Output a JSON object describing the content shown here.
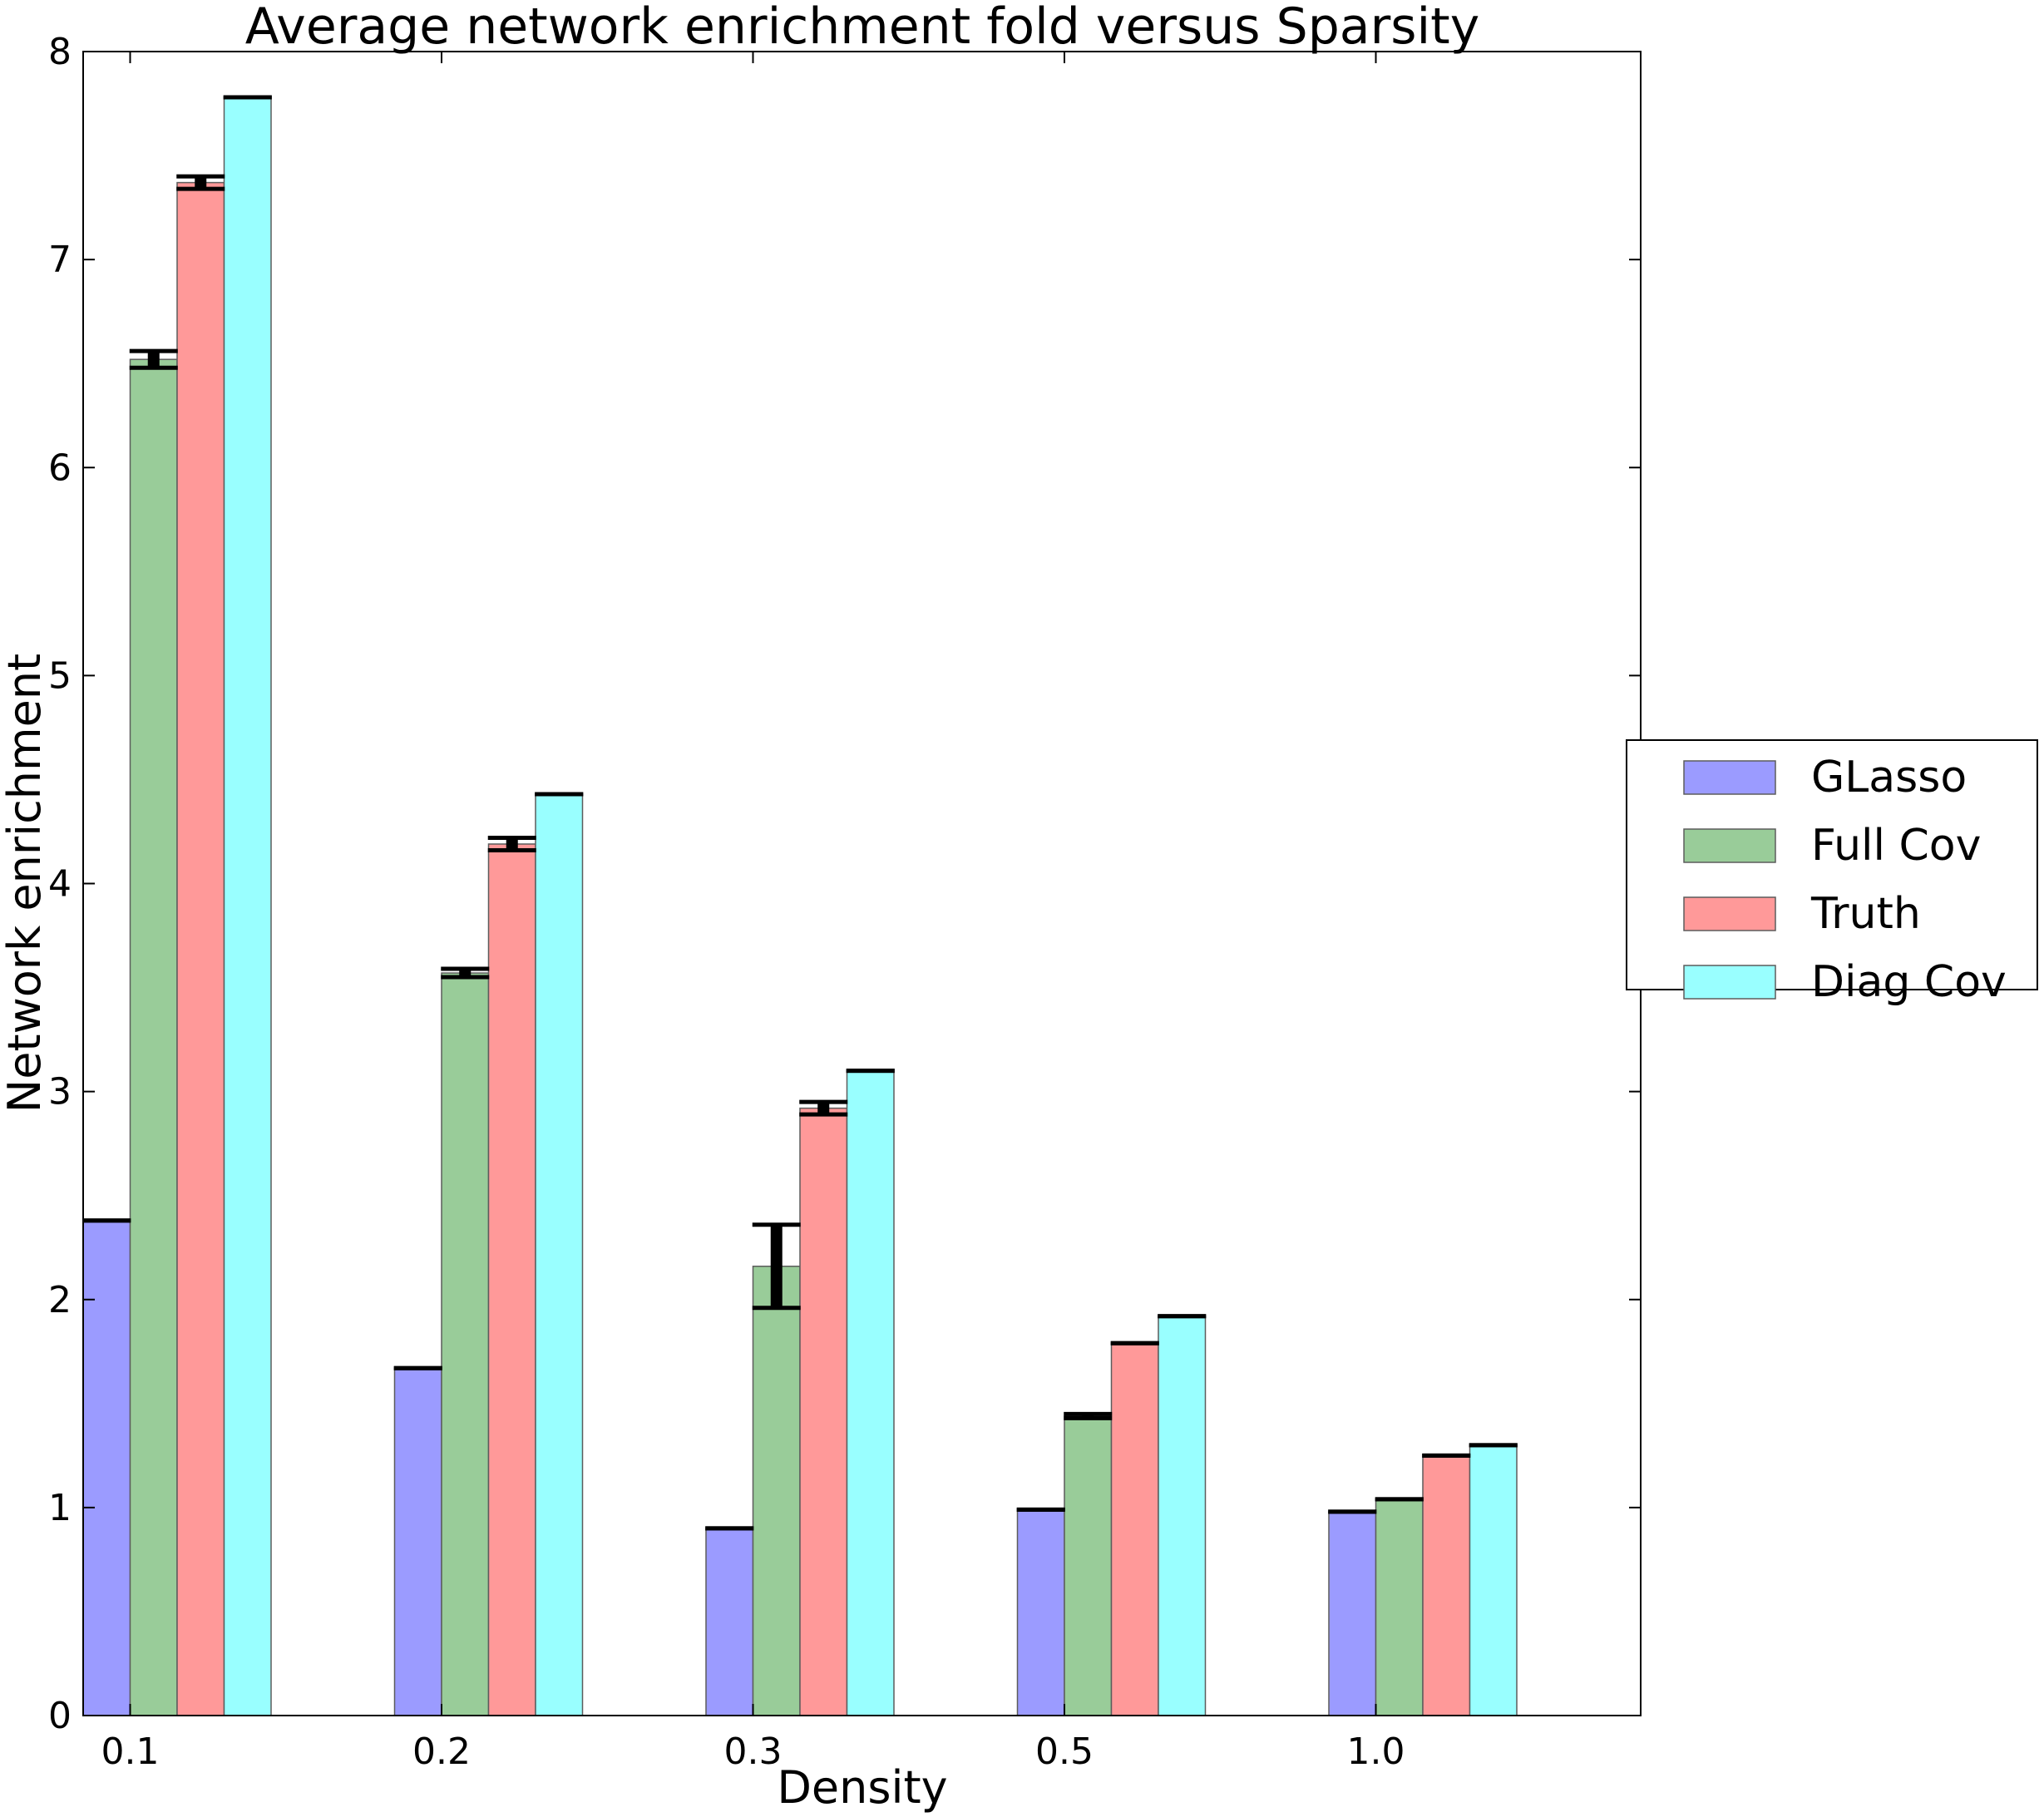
{
  "chart_data": {
    "type": "bar",
    "title": "Average network enrichment fold versus Sparsity",
    "xlabel": "Density",
    "ylabel": "Network enrichment",
    "categories": [
      "0.1",
      "0.2",
      "0.3",
      "0.5",
      "1.0"
    ],
    "ylim": [
      0,
      8
    ],
    "yticks": [
      "0",
      "1",
      "2",
      "3",
      "4",
      "5",
      "6",
      "7",
      "8"
    ],
    "legend_position": "right, outside plot",
    "grid": false,
    "series": [
      {
        "name": "GLasso",
        "color": "#9b9bff",
        "values": [
          2.38,
          1.67,
          0.9,
          0.99,
          0.98
        ],
        "errors": [
          0.0,
          0.0,
          0.0,
          0.0,
          0.0
        ]
      },
      {
        "name": "Full Cov",
        "color": "#99cc99",
        "values": [
          6.52,
          3.57,
          2.16,
          1.44,
          1.04
        ],
        "errors": [
          0.04,
          0.02,
          0.2,
          0.01,
          0.0
        ]
      },
      {
        "name": "Truth",
        "color": "#ff9999",
        "values": [
          7.37,
          4.19,
          2.92,
          1.79,
          1.25
        ],
        "errors": [
          0.03,
          0.03,
          0.03,
          0.0,
          0.0
        ]
      },
      {
        "name": "Diag Cov",
        "color": "#99ffff",
        "values": [
          7.78,
          4.43,
          3.1,
          1.92,
          1.3
        ],
        "errors": [
          0.0,
          0.0,
          0.0,
          0.0,
          0.0
        ]
      }
    ]
  }
}
